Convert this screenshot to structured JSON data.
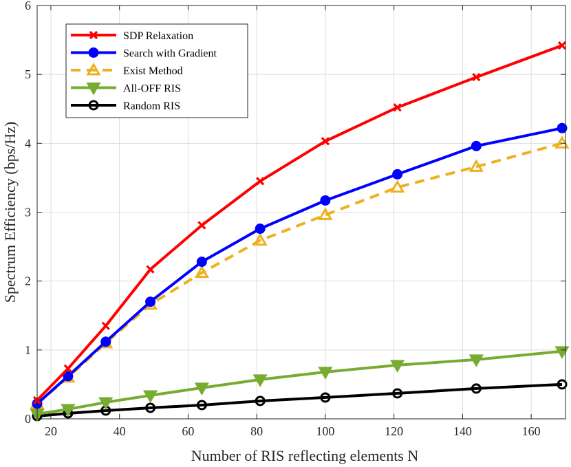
{
  "chart_data": {
    "type": "line",
    "title": "",
    "xlabel": "Number of RIS reflecting elements N",
    "ylabel": "Spectrum Efficiency (bps/Hz)",
    "xlim": [
      16,
      170
    ],
    "ylim": [
      0,
      6
    ],
    "xticks": [
      20,
      40,
      60,
      80,
      100,
      120,
      140,
      160
    ],
    "yticks": [
      0,
      1,
      2,
      3,
      4,
      5,
      6
    ],
    "grid": true,
    "legend_position": "top-left",
    "x": [
      16,
      25,
      36,
      49,
      64,
      81,
      100,
      121,
      144,
      169
    ],
    "series": [
      {
        "name": "SDP Relaxation",
        "color": "#ff0000",
        "marker": "x",
        "dash": false,
        "values": [
          0.27,
          0.73,
          1.35,
          2.17,
          2.81,
          3.45,
          4.03,
          4.52,
          4.96,
          5.42
        ]
      },
      {
        "name": "Search with Gradient",
        "color": "#0000ff",
        "marker": "circle",
        "dash": false,
        "values": [
          0.22,
          0.62,
          1.12,
          1.7,
          2.28,
          2.76,
          3.17,
          3.55,
          3.96,
          4.22
        ]
      },
      {
        "name": "Exist Method",
        "color": "#edb120",
        "marker": "triangle-up",
        "dash": true,
        "values": [
          0.22,
          0.6,
          1.1,
          1.66,
          2.12,
          2.59,
          2.96,
          3.36,
          3.66,
          4.0
        ]
      },
      {
        "name": "All-OFF RIS",
        "color": "#77ac30",
        "marker": "triangle-down",
        "dash": false,
        "values": [
          0.07,
          0.14,
          0.24,
          0.34,
          0.45,
          0.57,
          0.68,
          0.78,
          0.86,
          0.98
        ]
      },
      {
        "name": "Random RIS",
        "color": "#000000",
        "marker": "circle",
        "dash": false,
        "values": [
          0.04,
          0.08,
          0.12,
          0.16,
          0.2,
          0.26,
          0.31,
          0.37,
          0.44,
          0.5
        ]
      }
    ]
  }
}
